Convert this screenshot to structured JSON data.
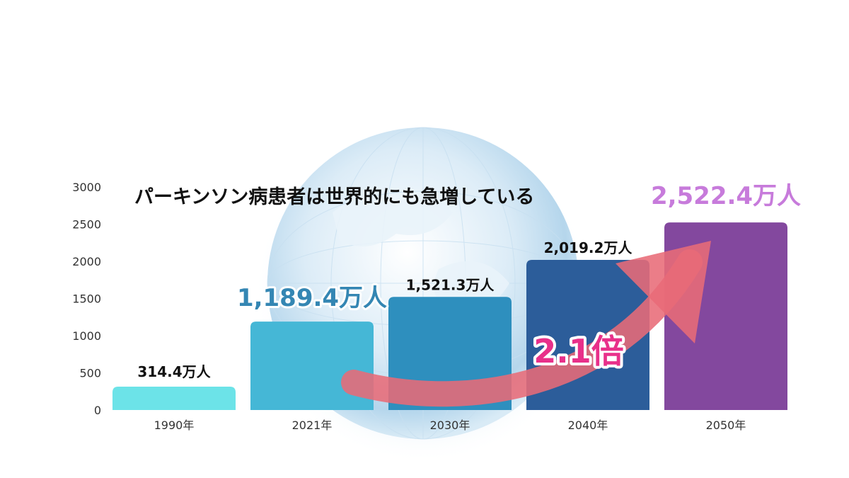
{
  "chart_data": {
    "type": "bar",
    "title": "パーキンソン病患者は世界的にも急増している",
    "xlabel": "",
    "ylabel": "",
    "ylim": [
      0,
      3000
    ],
    "yticks": [
      "0",
      "500",
      "1000",
      "1500",
      "2000",
      "2500",
      "3000"
    ],
    "categories": [
      "1990年",
      "2021年",
      "2030年",
      "2040年",
      "2050年"
    ],
    "values": [
      314.4,
      1189.4,
      1521.3,
      2019.2,
      2522.4
    ],
    "data_labels": [
      "314.4万人",
      "1,189.4万人",
      "1,521.3万人",
      "2,019.2万人",
      "2,522.4万人"
    ],
    "bar_colors": [
      "#6CE3E8",
      "#45B7D6",
      "#2E8FBE",
      "#2C5D9A",
      "#83489E"
    ],
    "label_colors": [
      "#111111",
      "#3486B3",
      "#111111",
      "#111111",
      "#C77BDB"
    ],
    "grid": false,
    "annotation": {
      "text": "2.1倍",
      "arrow_color": "#E86B78",
      "text_color": "#E8308A"
    }
  }
}
